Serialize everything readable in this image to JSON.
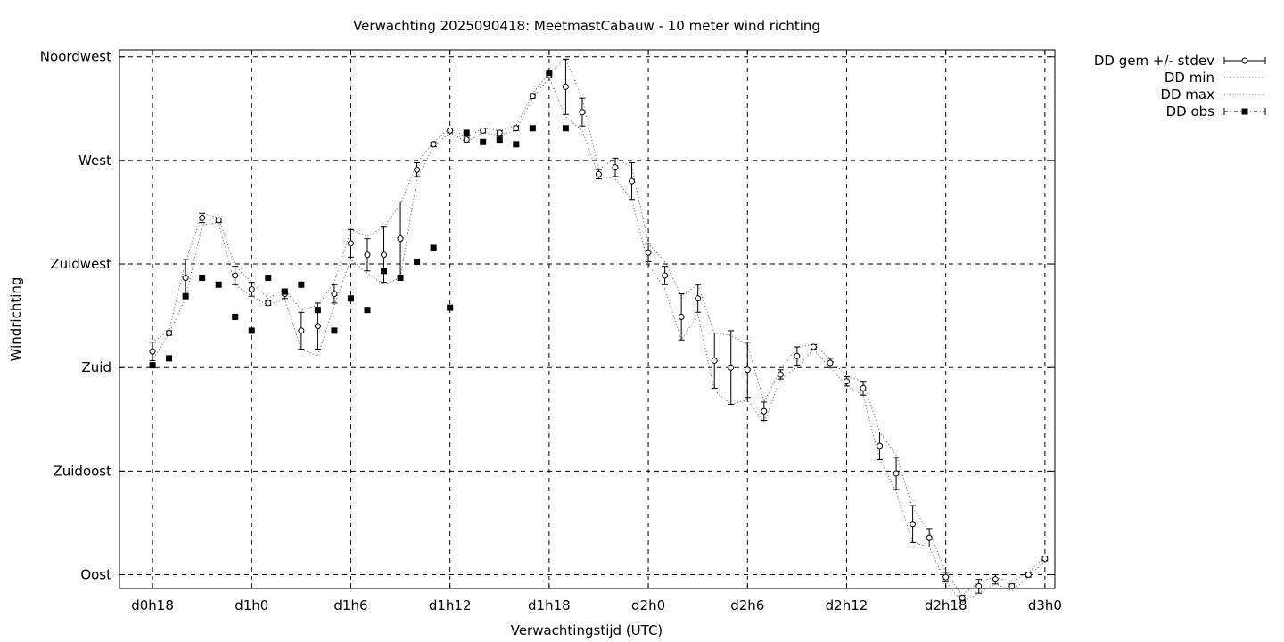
{
  "chart_data": {
    "type": "scatter",
    "title": "Verwachting 2025090418: MeetmastCabauw - 10 meter wind richting",
    "xlabel": "Verwachtingstijd (UTC)",
    "ylabel": "Windrichting",
    "x_unit": "hours since d0h0",
    "xlim": [
      16,
      72.6
    ],
    "ylim": [
      84,
      318
    ],
    "x_ticks": [
      {
        "x": 18,
        "label": "d0h18"
      },
      {
        "x": 24,
        "label": "d1h0"
      },
      {
        "x": 30,
        "label": "d1h6"
      },
      {
        "x": 36,
        "label": "d1h12"
      },
      {
        "x": 42,
        "label": "d1h18"
      },
      {
        "x": 48,
        "label": "d2h0"
      },
      {
        "x": 54,
        "label": "d2h6"
      },
      {
        "x": 60,
        "label": "d2h12"
      },
      {
        "x": 66,
        "label": "d2h18"
      },
      {
        "x": 72,
        "label": "d3h0"
      }
    ],
    "y_ticks": [
      {
        "y": 90,
        "label": "Oost"
      },
      {
        "y": 135,
        "label": "Zuidoost"
      },
      {
        "y": 180,
        "label": "Zuid"
      },
      {
        "y": 225,
        "label": "Zuidwest"
      },
      {
        "y": 270,
        "label": "West"
      },
      {
        "y": 315,
        "label": "Noordwest"
      }
    ],
    "grid": true,
    "legend_position": "outside-top-right",
    "series": [
      {
        "name": "DD gem +/- stdev",
        "style": "errorbars",
        "x": [
          18,
          19,
          20,
          21,
          22,
          23,
          24,
          25,
          26,
          27,
          28,
          29,
          30,
          31,
          32,
          33,
          34,
          35,
          36,
          37,
          38,
          39,
          40,
          41,
          42,
          43,
          44,
          45,
          46,
          47,
          48,
          49,
          50,
          51,
          52,
          53,
          54,
          55,
          56,
          57,
          58,
          59,
          60,
          61,
          62,
          63,
          64,
          65,
          66,
          67,
          68,
          69,
          70,
          71,
          72
        ],
        "mean": [
          187,
          195,
          219,
          245,
          244,
          220,
          214,
          208,
          212,
          196,
          198,
          212,
          234,
          229,
          229,
          236,
          266,
          277,
          283,
          279,
          283,
          282,
          284,
          298,
          307,
          302,
          291,
          264,
          267,
          261,
          230,
          220,
          202,
          210,
          183,
          180,
          179,
          161,
          177,
          185,
          189,
          182,
          174,
          171,
          146,
          134,
          112,
          106,
          89,
          80,
          85,
          88,
          85,
          90,
          97
        ],
        "stdev": [
          4,
          1,
          8,
          2,
          1,
          4,
          3,
          1,
          2,
          8,
          10,
          4,
          6,
          7,
          12,
          16,
          3,
          1,
          1,
          1,
          1,
          1,
          1,
          1,
          1,
          12,
          6,
          2,
          4,
          8,
          4,
          4,
          10,
          6,
          12,
          16,
          12,
          4,
          2,
          4,
          1,
          2,
          2,
          3,
          6,
          7,
          8,
          4,
          2,
          1,
          3,
          2,
          1,
          1,
          1
        ]
      },
      {
        "name": "DD min",
        "style": "dots",
        "values": [
          183,
          195,
          210,
          242,
          243,
          216,
          211,
          207,
          210,
          188,
          185,
          207,
          227,
          221,
          216,
          219,
          262,
          276,
          282,
          278,
          282,
          281,
          283,
          297,
          306,
          289,
          283,
          263,
          262,
          253,
          225,
          214,
          192,
          203,
          170,
          164,
          166,
          156,
          175,
          180,
          188,
          180,
          172,
          168,
          140,
          126,
          104,
          102,
          87,
          78,
          82,
          86,
          83,
          89,
          96
        ]
      },
      {
        "name": "DD max",
        "style": "dots",
        "values": [
          191,
          196,
          226,
          247,
          245,
          224,
          217,
          210,
          214,
          205,
          207,
          217,
          240,
          237,
          241,
          251,
          269,
          278,
          284,
          280,
          284,
          283,
          285,
          299,
          308,
          314,
          297,
          266,
          271,
          267,
          234,
          226,
          211,
          216,
          195,
          194,
          190,
          165,
          179,
          189,
          190,
          184,
          176,
          174,
          152,
          142,
          119,
          109,
          91,
          81,
          87,
          89,
          87,
          91,
          98
        ]
      },
      {
        "name": "DD obs",
        "style": "squares",
        "x": [
          18,
          19,
          20,
          21,
          22,
          23,
          24,
          25,
          26,
          27,
          28,
          29,
          30,
          31,
          32,
          33,
          34,
          35,
          36,
          37,
          38,
          39,
          40,
          41,
          42,
          43
        ],
        "values": [
          181,
          184,
          211,
          219,
          216,
          202,
          196,
          219,
          213,
          216,
          205,
          196,
          210,
          205,
          222,
          219,
          226,
          232,
          206,
          282,
          278,
          279,
          277,
          284,
          308,
          284
        ]
      }
    ]
  }
}
